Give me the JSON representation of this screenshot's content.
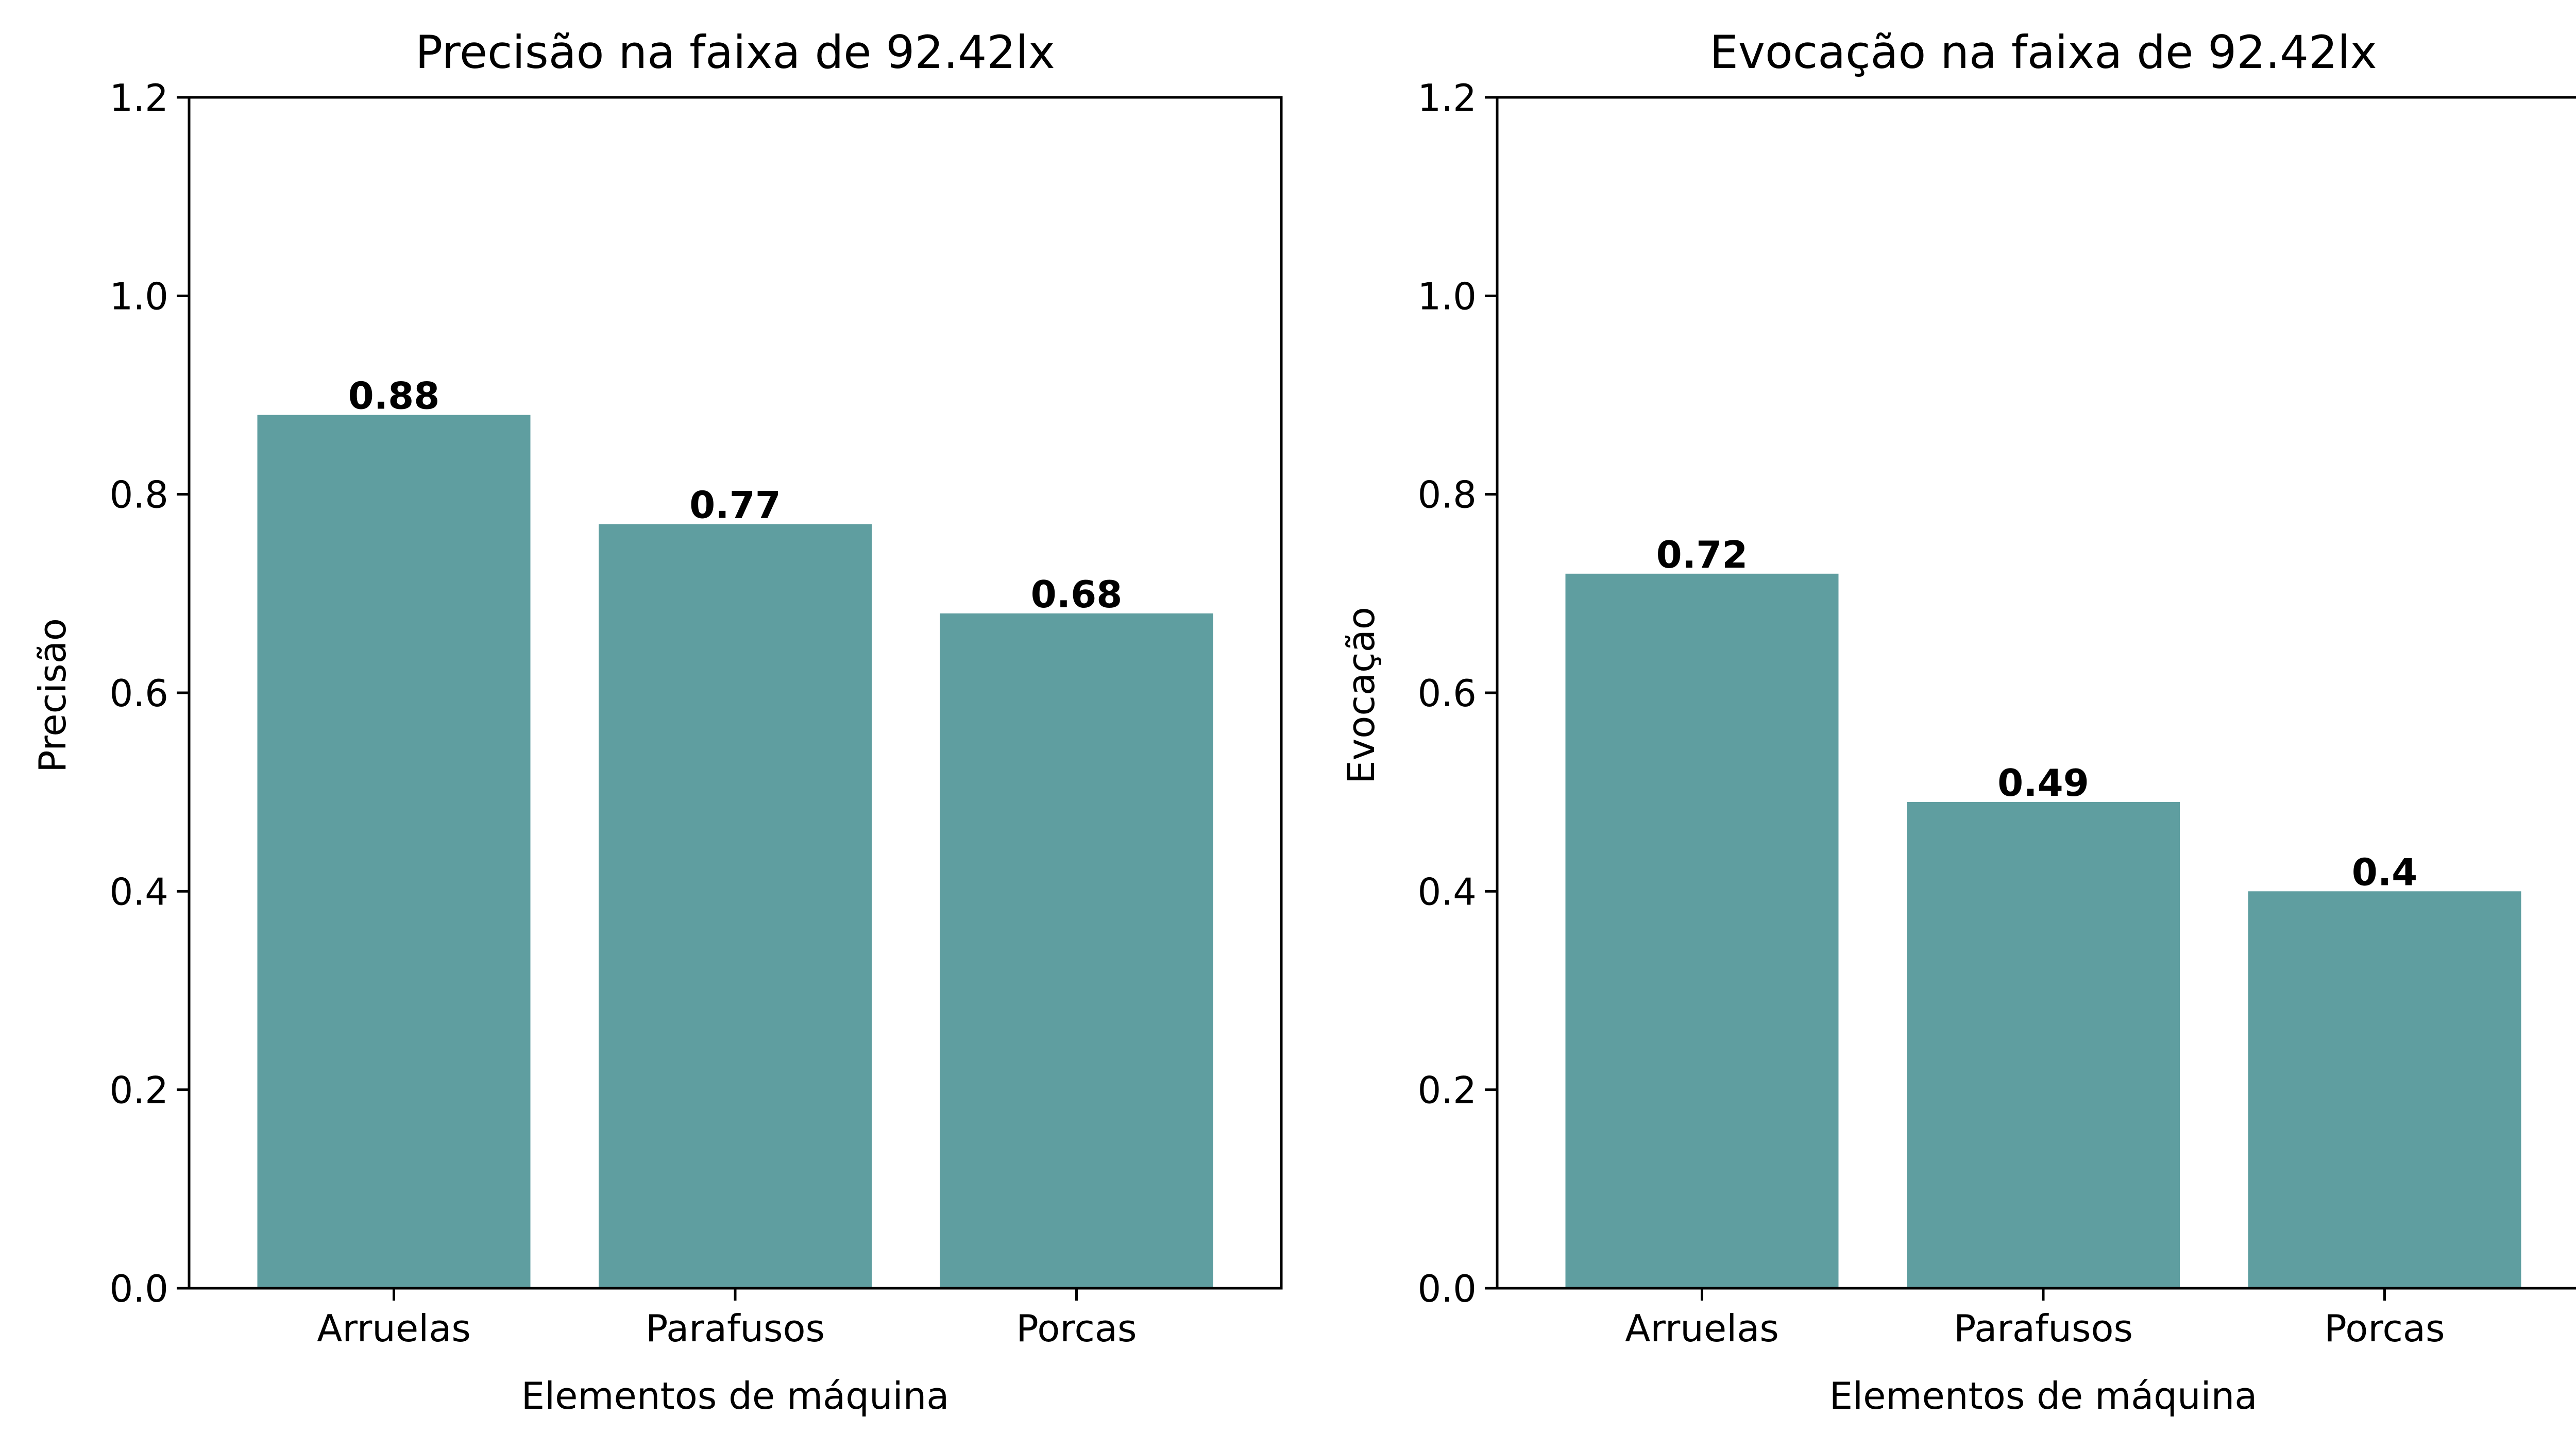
{
  "colors": {
    "bar": "#5f9ea0",
    "axis": "#000000",
    "background": "#ffffff"
  },
  "chart_data": [
    {
      "type": "bar",
      "title": "Precisão na faixa de 92.42lx",
      "xlabel": "Elementos de máquina",
      "ylabel": "Precisão",
      "categories": [
        "Arruelas",
        "Parafusos",
        "Porcas"
      ],
      "values": [
        0.88,
        0.77,
        0.68
      ],
      "value_labels": [
        "0.88",
        "0.77",
        "0.68"
      ],
      "ylim": [
        0,
        1.2
      ],
      "yticks": [
        0.0,
        0.2,
        0.4,
        0.6,
        0.8,
        1.0,
        1.2
      ],
      "ytick_labels": [
        "0.0",
        "0.2",
        "0.4",
        "0.6",
        "0.8",
        "1.0",
        "1.2"
      ],
      "grid": false
    },
    {
      "type": "bar",
      "title": "Evocação na faixa de 92.42lx",
      "xlabel": "Elementos de máquina",
      "ylabel": "Evocação",
      "categories": [
        "Arruelas",
        "Parafusos",
        "Porcas"
      ],
      "values": [
        0.72,
        0.49,
        0.4
      ],
      "value_labels": [
        "0.72",
        "0.49",
        "0.4"
      ],
      "ylim": [
        0,
        1.2
      ],
      "yticks": [
        0.0,
        0.2,
        0.4,
        0.6,
        0.8,
        1.0,
        1.2
      ],
      "ytick_labels": [
        "0.0",
        "0.2",
        "0.4",
        "0.6",
        "0.8",
        "1.0",
        "1.2"
      ],
      "grid": false
    }
  ]
}
